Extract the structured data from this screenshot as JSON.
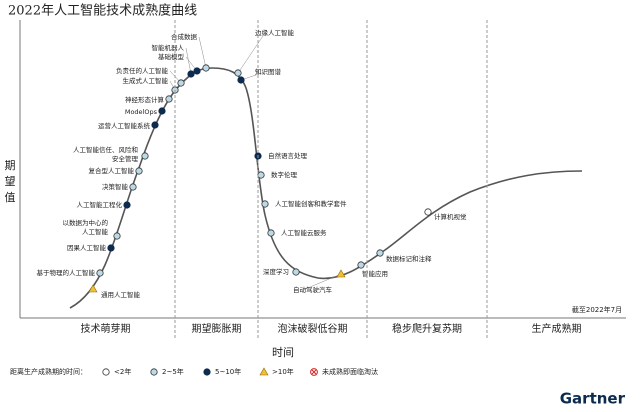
{
  "title": "2022年人工智能技术成熟度曲线",
  "y_label": "期望值",
  "x_label": "时间",
  "note": "截至2022年7月",
  "phases": [
    "技术萌芽期",
    "期望膨胀期",
    "泡沫破裂低谷期",
    "稳步爬升复苏期",
    "生产成熟期"
  ],
  "legend": {
    "title": "距离生产成熟期的时间：",
    "items": [
      "<2年",
      "2~5年",
      "5~10年",
      ">10年",
      "未成熟即面临淘汰"
    ]
  },
  "points": [
    {
      "label": [
        "通用人工智能"
      ],
      "maturity": ">10年"
    },
    {
      "label": [
        "基于物理的人工智能"
      ],
      "maturity": "2~5年"
    },
    {
      "label": [
        "因果人工智能"
      ],
      "maturity": "5~10年"
    },
    {
      "label": [
        "以数据为中心的",
        "人工智能"
      ],
      "maturity": "2~5年"
    },
    {
      "label": [
        "人工智能工程化"
      ],
      "maturity": "5~10年"
    },
    {
      "label": [
        "决策智能"
      ],
      "maturity": "2~5年"
    },
    {
      "label": [
        "复合型人工智能"
      ],
      "maturity": "2~5年"
    },
    {
      "label": [
        "人工智能信任、风险和",
        "安全管理"
      ],
      "maturity": "2~5年"
    },
    {
      "label": [
        "运营人工智能系统"
      ],
      "maturity": "5~10年"
    },
    {
      "label": [
        "ModelOps"
      ],
      "maturity": "5~10年"
    },
    {
      "label": [
        "神经形态计算"
      ],
      "maturity": "2~5年"
    },
    {
      "label": [
        "生成式人工智能"
      ],
      "maturity": "2~5年"
    },
    {
      "label": [
        "负责任的人工智能"
      ],
      "maturity": "2~5年"
    },
    {
      "label": [
        "智能机器人"
      ],
      "maturity": "5~10年"
    },
    {
      "label": [
        "基础模型"
      ],
      "maturity": "5~10年"
    },
    {
      "label": [
        "合成数据"
      ],
      "maturity": "2~5年"
    },
    {
      "label": [
        "边缘人工智能"
      ],
      "maturity": "2~5年"
    },
    {
      "label": [
        "知识图谱"
      ],
      "maturity": "5~10年"
    },
    {
      "label": [
        "自然语言处理"
      ],
      "maturity": "5~10年"
    },
    {
      "label": [
        "数字伦理"
      ],
      "maturity": "2~5年"
    },
    {
      "label": [
        "人工智能创客和教学套件"
      ],
      "maturity": "2~5年"
    },
    {
      "label": [
        "人工智能云服务"
      ],
      "maturity": "2~5年"
    },
    {
      "label": [
        "深度学习"
      ],
      "maturity": "2~5年"
    },
    {
      "label": [
        "自动驾驶汽车"
      ],
      "maturity": ">10年"
    },
    {
      "label": [
        "智能应用"
      ],
      "maturity": "2~5年"
    },
    {
      "label": [
        "数据标记和注释"
      ],
      "maturity": "2~5年"
    },
    {
      "label": [
        "计算机视觉"
      ],
      "maturity": "<2年"
    }
  ],
  "brand": "Gartner"
}
